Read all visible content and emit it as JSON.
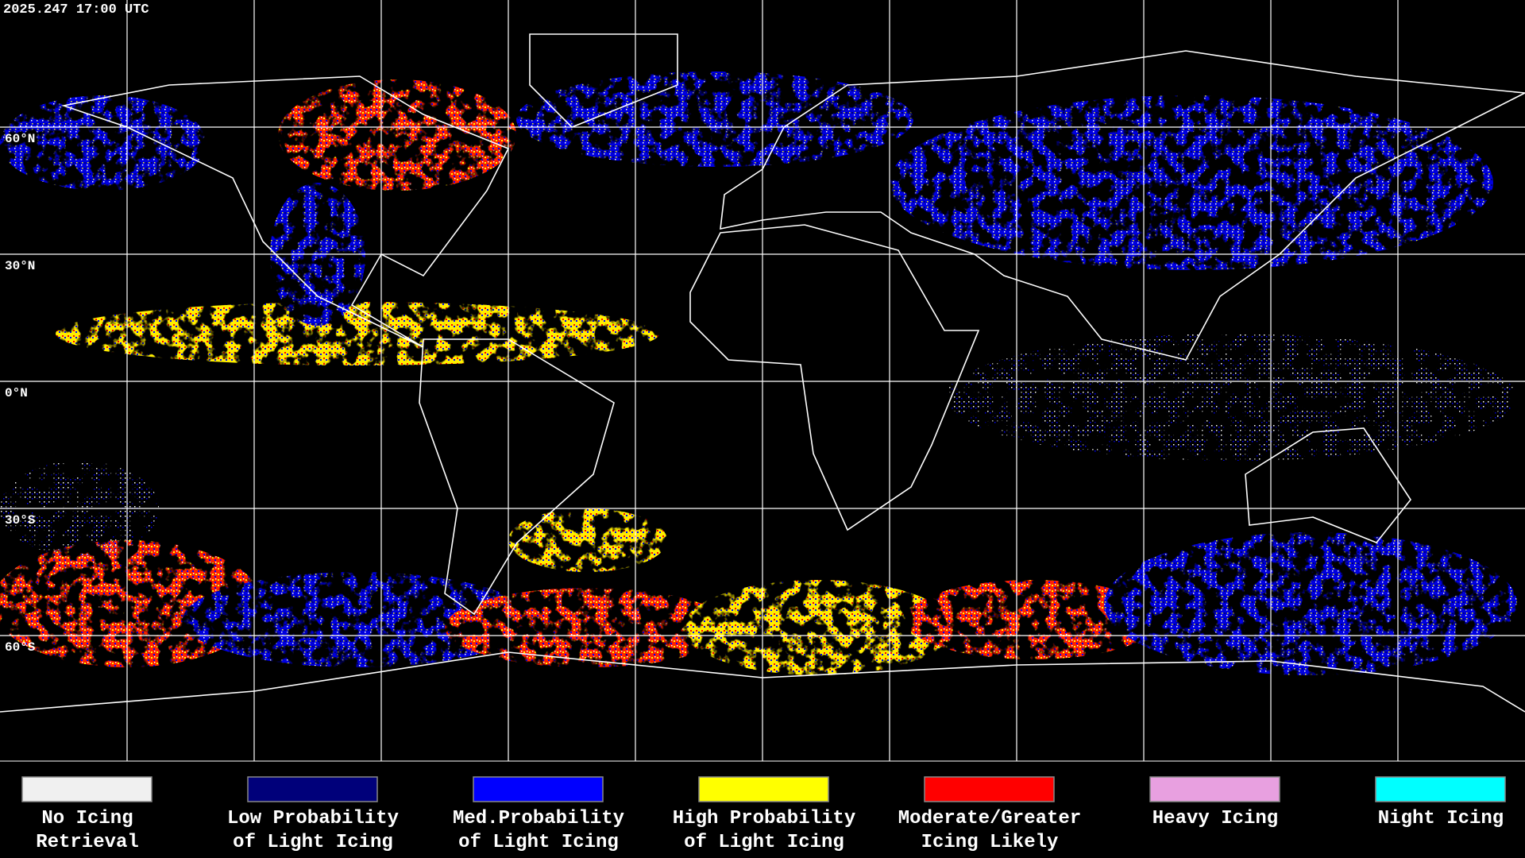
{
  "header": {
    "timestamp": "2025.247 17:00 UTC"
  },
  "map": {
    "latitude_labels": [
      "60°N",
      "30°N",
      "0°N",
      "30°S",
      "60°S"
    ]
  },
  "legend": [
    {
      "label_lines": [
        "No Icing",
        "Retrieval"
      ],
      "color": "#f0f0f0"
    },
    {
      "label_lines": [
        "Low Probability",
        "of Light Icing"
      ],
      "color": "#00007a"
    },
    {
      "label_lines": [
        "Med.Probability",
        "of Light Icing"
      ],
      "color": "#0000ff"
    },
    {
      "label_lines": [
        "High Probability",
        "of Light Icing"
      ],
      "color": "#ffff00"
    },
    {
      "label_lines": [
        "Moderate/Greater",
        "Icing Likely"
      ],
      "color": "#ff0000"
    },
    {
      "label_lines": [
        "Heavy Icing"
      ],
      "color": "#e8a0e0"
    },
    {
      "label_lines": [
        "Night Icing"
      ],
      "color": "#00ffff"
    }
  ]
}
